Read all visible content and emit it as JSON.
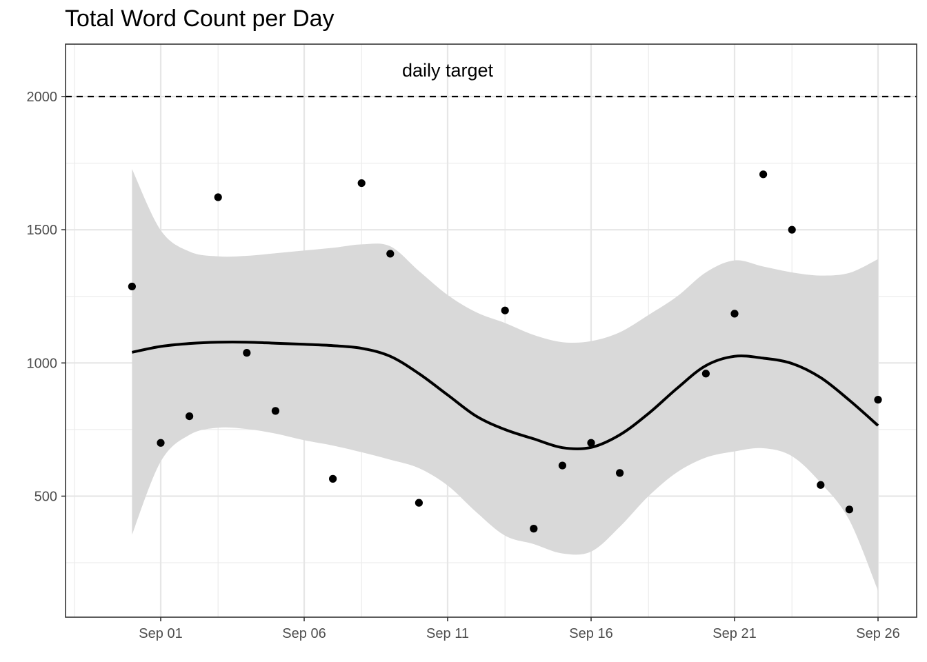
{
  "chart_data": {
    "type": "scatter",
    "title": "Total Word Count per Day",
    "xlabel": "",
    "ylabel": "",
    "x_type": "date",
    "x_ticks": [
      "Sep 01",
      "Sep 06",
      "Sep 11",
      "Sep 16",
      "Sep 21",
      "Sep 26"
    ],
    "y_ticks": [
      500,
      1000,
      1500,
      2000
    ],
    "xlim": [
      "2025-08-28",
      "2025-09-27"
    ],
    "ylim": [
      150,
      2200
    ],
    "grid": true,
    "theme": "black-and-white",
    "colors": {
      "points": "#000000",
      "smooth_line": "#000000",
      "ribbon": "#d9d9d9",
      "reference_line": "#000000"
    },
    "points": [
      {
        "date": "2025-08-31",
        "words": 1287
      },
      {
        "date": "2025-09-01",
        "words": 700
      },
      {
        "date": "2025-09-02",
        "words": 800
      },
      {
        "date": "2025-09-03",
        "words": 1622
      },
      {
        "date": "2025-09-04",
        "words": 1038
      },
      {
        "date": "2025-09-05",
        "words": 820
      },
      {
        "date": "2025-09-07",
        "words": 565
      },
      {
        "date": "2025-09-08",
        "words": 1675
      },
      {
        "date": "2025-09-09",
        "words": 1410
      },
      {
        "date": "2025-09-10",
        "words": 475
      },
      {
        "date": "2025-09-13",
        "words": 1197
      },
      {
        "date": "2025-09-14",
        "words": 378
      },
      {
        "date": "2025-09-15",
        "words": 615
      },
      {
        "date": "2025-09-16",
        "words": 700
      },
      {
        "date": "2025-09-17",
        "words": 587
      },
      {
        "date": "2025-09-20",
        "words": 960
      },
      {
        "date": "2025-09-21",
        "words": 1185
      },
      {
        "date": "2025-09-22",
        "words": 1708
      },
      {
        "date": "2025-09-23",
        "words": 1500
      },
      {
        "date": "2025-09-24",
        "words": 542
      },
      {
        "date": "2025-09-25",
        "words": 450
      },
      {
        "date": "2025-09-26",
        "words": 862
      }
    ],
    "smooth": {
      "method": "loess",
      "dates": [
        "2025-08-31",
        "2025-09-01",
        "2025-09-02",
        "2025-09-03",
        "2025-09-04",
        "2025-09-05",
        "2025-09-06",
        "2025-09-07",
        "2025-09-08",
        "2025-09-09",
        "2025-09-10",
        "2025-09-11",
        "2025-09-12",
        "2025-09-13",
        "2025-09-14",
        "2025-09-15",
        "2025-09-16",
        "2025-09-17",
        "2025-09-18",
        "2025-09-19",
        "2025-09-20",
        "2025-09-21",
        "2025-09-22",
        "2025-09-23",
        "2025-09-24",
        "2025-09-25",
        "2025-09-26"
      ],
      "fit": [
        1040,
        1062,
        1073,
        1078,
        1078,
        1074,
        1070,
        1065,
        1055,
        1025,
        960,
        880,
        800,
        750,
        715,
        682,
        683,
        730,
        810,
        905,
        990,
        1025,
        1018,
        998,
        945,
        860,
        765
      ],
      "lower": [
        355,
        630,
        730,
        757,
        752,
        735,
        710,
        690,
        665,
        637,
        605,
        540,
        440,
        352,
        320,
        285,
        292,
        385,
        500,
        590,
        645,
        668,
        680,
        650,
        550,
        410,
        145
      ],
      "upper": [
        1728,
        1498,
        1418,
        1400,
        1402,
        1412,
        1422,
        1432,
        1445,
        1438,
        1345,
        1255,
        1190,
        1150,
        1105,
        1078,
        1082,
        1115,
        1180,
        1250,
        1340,
        1385,
        1362,
        1340,
        1328,
        1338,
        1390
      ]
    },
    "reference_line": {
      "y": 2000,
      "style": "dashed",
      "label": "daily target",
      "label_x": "2025-09-11"
    }
  }
}
